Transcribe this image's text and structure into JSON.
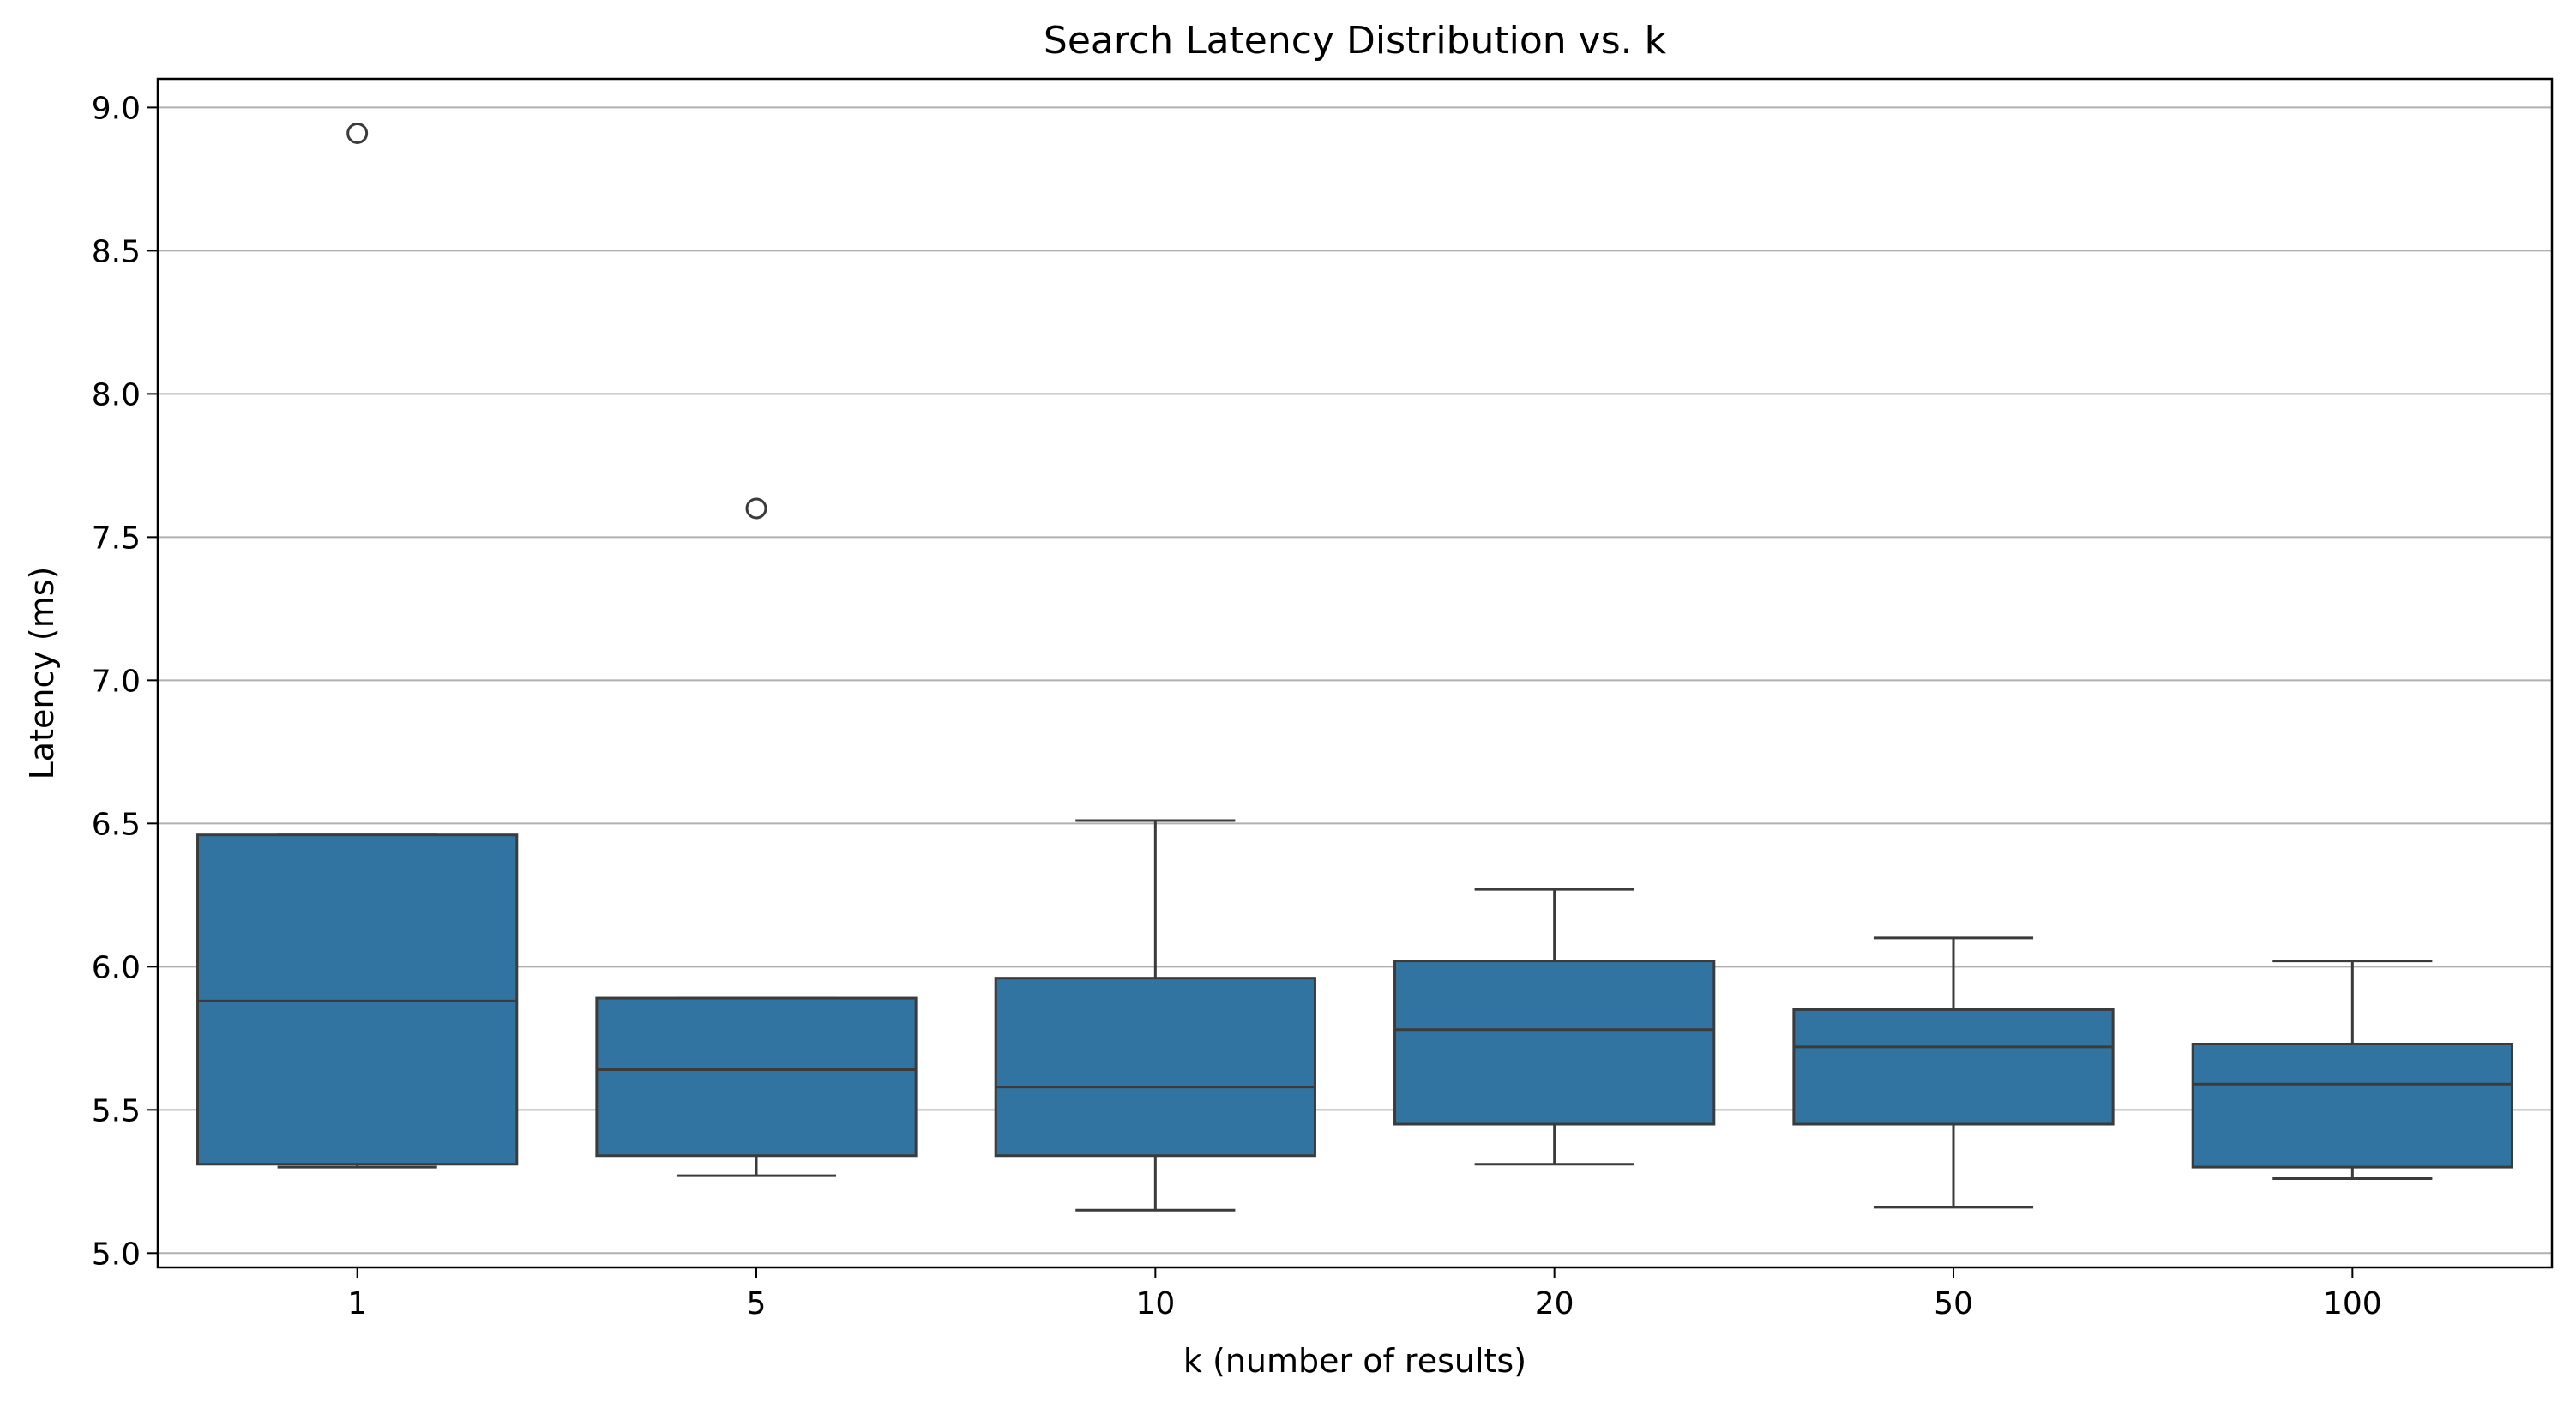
{
  "chart_data": {
    "type": "box",
    "title": "Search Latency Distribution vs. k",
    "xlabel": "k (number of results)",
    "ylabel": "Latency (ms)",
    "ylim": [
      4.95,
      9.1
    ],
    "yticks": [
      5.0,
      5.5,
      6.0,
      6.5,
      7.0,
      7.5,
      8.0,
      8.5,
      9.0
    ],
    "ytick_labels": [
      "5.0",
      "5.5",
      "6.0",
      "6.5",
      "7.0",
      "7.5",
      "8.0",
      "8.5",
      "9.0"
    ],
    "grid": "horizontal",
    "categories": [
      "1",
      "5",
      "10",
      "20",
      "50",
      "100"
    ],
    "boxes": [
      {
        "category": "1",
        "whisker_low": 5.3,
        "q1": 5.31,
        "median": 5.88,
        "q3": 6.46,
        "whisker_high": 6.46,
        "outliers": [
          8.91
        ]
      },
      {
        "category": "5",
        "whisker_low": 5.27,
        "q1": 5.34,
        "median": 5.64,
        "q3": 5.89,
        "whisker_high": 5.89,
        "outliers": [
          7.6
        ]
      },
      {
        "category": "10",
        "whisker_low": 5.15,
        "q1": 5.34,
        "median": 5.58,
        "q3": 5.96,
        "whisker_high": 6.51,
        "outliers": []
      },
      {
        "category": "20",
        "whisker_low": 5.31,
        "q1": 5.45,
        "median": 5.78,
        "q3": 6.02,
        "whisker_high": 6.27,
        "outliers": []
      },
      {
        "category": "50",
        "whisker_low": 5.16,
        "q1": 5.45,
        "median": 5.72,
        "q3": 5.85,
        "whisker_high": 6.1,
        "outliers": []
      },
      {
        "category": "100",
        "whisker_low": 5.26,
        "q1": 5.3,
        "median": 5.59,
        "q3": 5.73,
        "whisker_high": 6.02,
        "outliers": []
      }
    ],
    "colors": {
      "box_fill": "#3274a1",
      "box_edge": "#3b3b3b",
      "grid": "#b0b0b0",
      "axis": "#000000"
    }
  }
}
